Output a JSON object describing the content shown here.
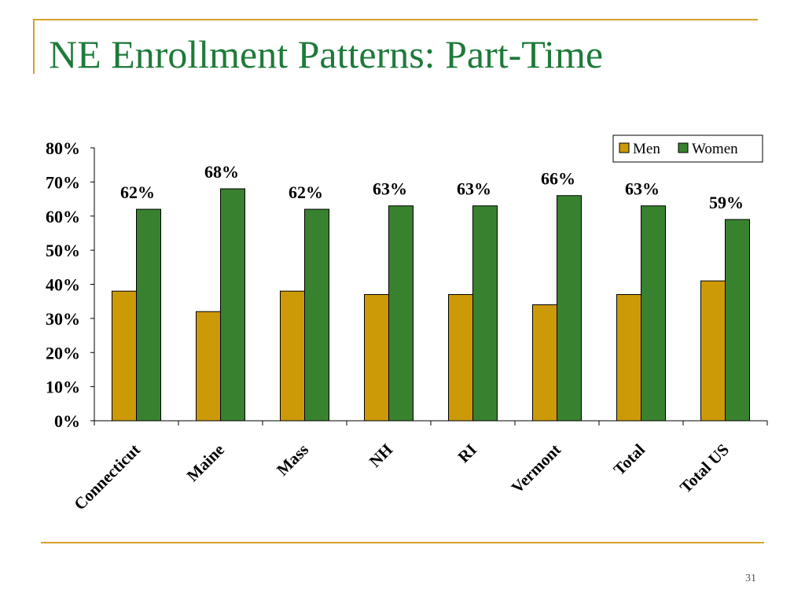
{
  "slide": {
    "title": "NE Enrollment Patterns:  Part-Time",
    "page_number": "31"
  },
  "colors": {
    "accent_rule": "#d4a32c",
    "title": "#1e7a3a",
    "men": "#cc9a06",
    "women": "#38822f"
  },
  "chart_data": {
    "type": "bar",
    "title": "",
    "xlabel": "",
    "ylabel": "",
    "ylim": [
      0,
      80
    ],
    "yticks": [
      "0%",
      "10%",
      "20%",
      "30%",
      "40%",
      "50%",
      "60%",
      "70%",
      "80%"
    ],
    "categories": [
      "Connecticut",
      "Maine",
      "Mass",
      "NH",
      "RI",
      "Vermont",
      "Total",
      "Total US"
    ],
    "series": [
      {
        "name": "Men",
        "values": [
          38,
          32,
          38,
          37,
          37,
          34,
          37,
          41
        ]
      },
      {
        "name": "Women",
        "values": [
          62,
          68,
          62,
          63,
          63,
          66,
          63,
          59
        ]
      }
    ],
    "data_labels": [
      "62%",
      "68%",
      "62%",
      "63%",
      "63%",
      "66%",
      "63%",
      "59%"
    ],
    "legend_position": "top-right",
    "grid": false
  }
}
